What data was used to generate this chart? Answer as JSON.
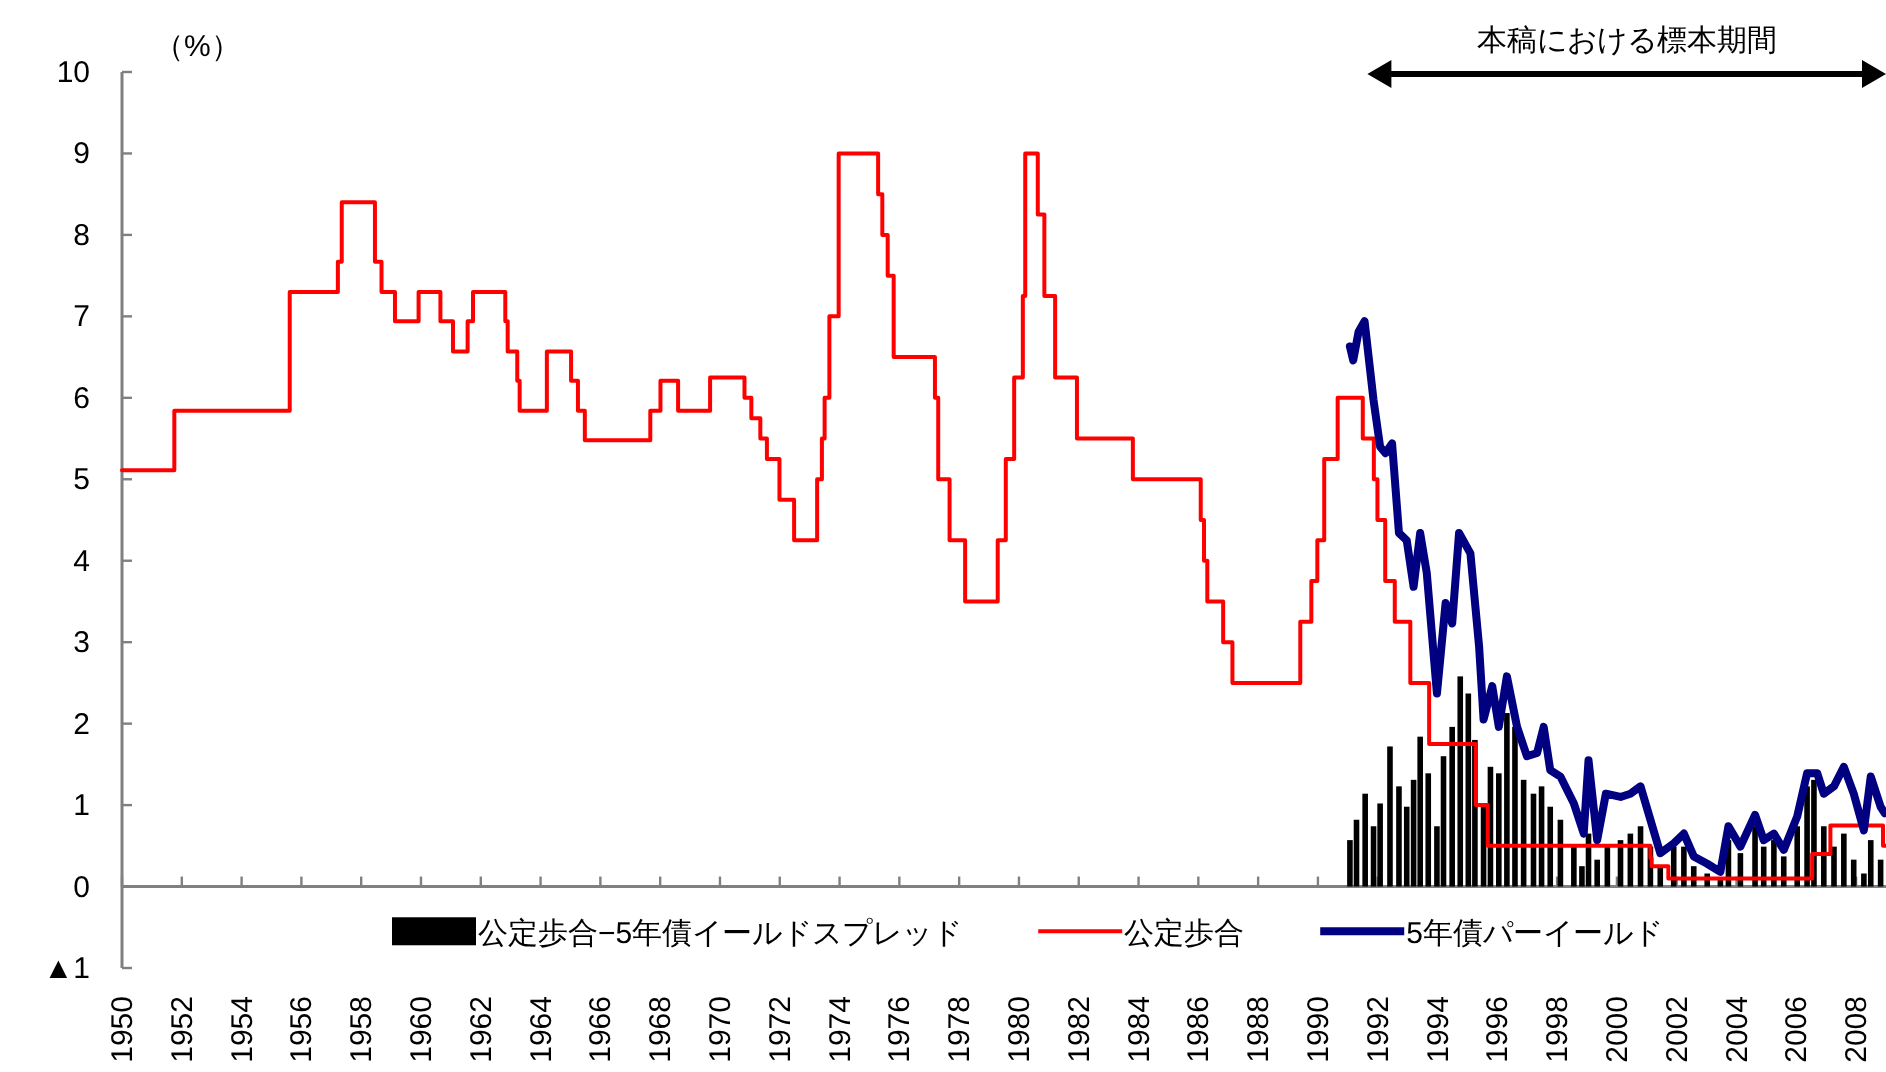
{
  "chart_data": {
    "type": "line",
    "ylabel": "（%）",
    "xlim": [
      1950,
      2009
    ],
    "xticks": [
      1950,
      1952,
      1954,
      1956,
      1958,
      1960,
      1962,
      1964,
      1966,
      1968,
      1970,
      1972,
      1974,
      1976,
      1978,
      1980,
      1982,
      1984,
      1986,
      1988,
      1990,
      1992,
      1994,
      1996,
      1998,
      2000,
      2002,
      2004,
      2006,
      2008
    ],
    "ylim": [
      -1,
      10
    ],
    "yticks": [
      {
        "value": -1,
        "label": "▲1"
      },
      0,
      1,
      2,
      3,
      4,
      5,
      6,
      7,
      8,
      9,
      10
    ],
    "legend": "bottom",
    "annotations": [
      "本稿における標本期間"
    ],
    "series": [
      {
        "name": "公定歩合−5年債イールドスプレッド",
        "type": "bar",
        "color": "#000000",
        "x": [
          1991.07,
          1991.29,
          1991.58,
          1991.86,
          1992.08,
          1992.41,
          1992.71,
          1992.97,
          1993.2,
          1993.42,
          1993.69,
          1993.98,
          1994.2,
          1994.49,
          1994.76,
          1995.03,
          1995.25,
          1995.54,
          1995.77,
          1996.05,
          1996.32,
          1996.59,
          1996.88,
          1997.21,
          1997.48,
          1997.77,
          1998.11,
          1998.56,
          1998.83,
          1999.05,
          1999.34,
          1999.68,
          2000.12,
          2000.45,
          2000.79,
          2001.12,
          2001.45,
          2001.9,
          2002.24,
          2002.57,
          2003.02,
          2003.46,
          2003.73,
          2004.13,
          2004.62,
          2004.91,
          2005.25,
          2005.58,
          2006.03,
          2006.36,
          2006.59,
          2006.92,
          2007.26,
          2007.59,
          2007.92,
          2008.26,
          2008.49,
          2008.82
        ],
        "values": [
          0.57,
          0.82,
          1.14,
          0.74,
          1.02,
          1.72,
          1.23,
          0.98,
          1.31,
          1.84,
          1.39,
          0.74,
          1.6,
          1.96,
          2.58,
          2.37,
          1.8,
          0.98,
          1.47,
          1.39,
          2.13,
          1.96,
          1.31,
          1.14,
          1.23,
          0.98,
          0.82,
          0.49,
          0.25,
          0.65,
          0.33,
          0.49,
          0.57,
          0.65,
          0.74,
          0.49,
          0.25,
          0.49,
          0.49,
          0.25,
          0.16,
          0.08,
          0.57,
          0.41,
          0.74,
          0.49,
          0.57,
          0.37,
          0.74,
          1.23,
          1.31,
          0.74,
          0.49,
          0.65,
          0.33,
          0.16,
          0.57,
          0.33
        ]
      },
      {
        "name": "公定歩合",
        "type": "step",
        "color": "#ff0000",
        "x": [
          1950,
          1951.75,
          1955.61,
          1957.22,
          1957.35,
          1958.46,
          1958.68,
          1959.13,
          1959.92,
          1960.65,
          1961.07,
          1961.56,
          1961.74,
          1962.82,
          1962.9,
          1963.22,
          1963.3,
          1964.21,
          1965.02,
          1965.25,
          1965.48,
          1967.67,
          1968.01,
          1968.6,
          1969.67,
          1970.82,
          1971.05,
          1971.35,
          1971.57,
          1971.99,
          1972.48,
          1973.25,
          1973.41,
          1973.5,
          1973.66,
          1973.97,
          1975.29,
          1975.43,
          1975.61,
          1975.81,
          1977.19,
          1977.3,
          1977.68,
          1978.2,
          1979.29,
          1979.56,
          1979.84,
          1980.13,
          1980.21,
          1980.63,
          1980.85,
          1981.21,
          1981.94,
          1983.81,
          1986.08,
          1986.19,
          1986.3,
          1986.83,
          1987.14,
          1989.41,
          1989.78,
          1989.98,
          1990.21,
          1990.66,
          1991.5,
          1991.87,
          1991.99,
          1992.25,
          1992.57,
          1993.09,
          1993.72,
          1995.28,
          1995.68,
          2001.12,
          2001.16,
          2001.72,
          2006.53,
          2007.14,
          2008.9,
          2008.98
        ],
        "values": [
          5.11,
          5.84,
          7.3,
          7.67,
          8.4,
          7.67,
          7.3,
          6.94,
          7.3,
          6.94,
          6.57,
          6.94,
          7.3,
          6.94,
          6.57,
          6.21,
          5.84,
          6.57,
          6.21,
          5.84,
          5.48,
          5.84,
          6.21,
          5.84,
          6.25,
          6.0,
          5.75,
          5.5,
          5.25,
          4.75,
          4.25,
          5.0,
          5.5,
          6.0,
          7.0,
          9.0,
          8.5,
          8.0,
          7.5,
          6.5,
          6.0,
          5.0,
          4.25,
          3.5,
          4.25,
          5.25,
          6.25,
          7.25,
          9.0,
          8.25,
          7.25,
          6.25,
          5.5,
          5.0,
          4.5,
          4.0,
          3.5,
          3.0,
          2.5,
          3.25,
          3.75,
          4.25,
          5.25,
          6.0,
          5.5,
          5.0,
          4.5,
          3.75,
          3.25,
          2.5,
          1.75,
          1.0,
          0.5,
          0.35,
          0.25,
          0.1,
          0.4,
          0.75,
          0.5,
          0.5
        ]
      },
      {
        "name": "5年債パーイールド",
        "color": "#000080",
        "x": [
          1991.07,
          1991.18,
          1991.36,
          1991.56,
          1991.86,
          1992.08,
          1992.26,
          1992.48,
          1992.71,
          1992.97,
          1993.2,
          1993.42,
          1993.64,
          1993.98,
          1994.27,
          1994.49,
          1994.72,
          1995.1,
          1995.39,
          1995.54,
          1995.83,
          1996.05,
          1996.32,
          1996.66,
          1996.99,
          1997.33,
          1997.55,
          1997.77,
          1998.11,
          1998.56,
          1998.89,
          1999.05,
          1999.34,
          1999.63,
          2000.12,
          2000.45,
          2000.79,
          2001.12,
          2001.45,
          2001.9,
          2002.24,
          2002.57,
          2003.02,
          2003.46,
          2003.73,
          2004.13,
          2004.62,
          2004.91,
          2005.25,
          2005.58,
          2006.03,
          2006.36,
          2006.7,
          2006.92,
          2007.26,
          2007.59,
          2007.92,
          2008.26,
          2008.49,
          2008.82,
          2008.96
        ],
        "values": [
          6.63,
          6.46,
          6.81,
          6.94,
          5.97,
          5.4,
          5.32,
          5.44,
          4.34,
          4.25,
          3.68,
          4.34,
          3.85,
          2.37,
          3.48,
          3.23,
          4.34,
          4.09,
          2.95,
          2.05,
          2.46,
          1.96,
          2.58,
          1.96,
          1.6,
          1.64,
          1.96,
          1.43,
          1.35,
          1.02,
          0.65,
          1.55,
          0.57,
          1.14,
          1.1,
          1.14,
          1.23,
          0.82,
          0.41,
          0.53,
          0.65,
          0.37,
          0.28,
          0.18,
          0.74,
          0.49,
          0.88,
          0.57,
          0.65,
          0.45,
          0.86,
          1.39,
          1.39,
          1.14,
          1.23,
          1.47,
          1.14,
          0.69,
          1.35,
          0.98,
          0.9
        ]
      }
    ]
  }
}
